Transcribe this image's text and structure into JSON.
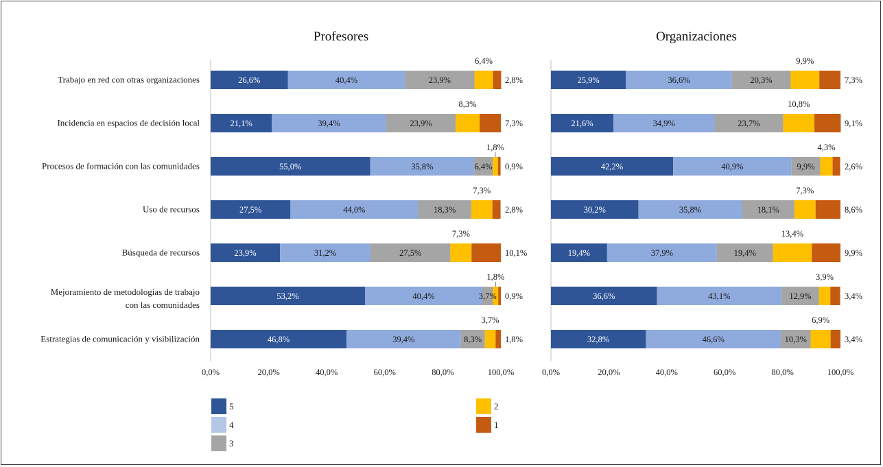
{
  "chart_data": {
    "type": "bar",
    "stacked": true,
    "orientation": "horizontal",
    "categories": [
      "Trabajo en red con otras organizaciones",
      "Incidencia en espacios de decisión local",
      "Procesos de formación con las comunidades",
      "Uso de recursos",
      "Búsqueda de recursos",
      "Mejoramiento de metodologías de trabajo con las comunidades",
      "Estrategias de comunicación y visibilización"
    ],
    "category_lines": [
      [
        "Trabajo en red con otras organizaciones"
      ],
      [
        "Incidencia en espacios de decisión local"
      ],
      [
        "Procesos de formación con las comunidades"
      ],
      [
        "Uso de recursos"
      ],
      [
        "Búsqueda de recursos"
      ],
      [
        "Mejoramiento de metodologías de trabajo",
        "con las comunidades"
      ],
      [
        "Estrategias de comunicación y visibilización"
      ]
    ],
    "x_ticks": [
      "0,0%",
      "20,0%",
      "40,0%",
      "60,0%",
      "80,0%",
      "100,0%"
    ],
    "xlim": [
      0,
      100
    ],
    "series_names": [
      "5",
      "4",
      "3",
      "2",
      "1"
    ],
    "colors": [
      "#2F5597",
      "#8FAADC",
      "#A5A5A5",
      "#FFC000",
      "#C55A11"
    ],
    "legend_placement": "bottom",
    "legend_swatch_colors": [
      "#2F5597",
      "#B4C7E7",
      "#A5A5A5",
      "#FFC000",
      "#C55A11"
    ],
    "panels": [
      {
        "title": "Profesores",
        "values": [
          [
            26.6,
            40.4,
            23.9,
            6.4,
            2.8
          ],
          [
            21.1,
            39.4,
            23.9,
            8.3,
            7.3
          ],
          [
            55.0,
            35.8,
            6.4,
            1.8,
            0.9
          ],
          [
            27.5,
            44.0,
            18.3,
            7.3,
            2.8
          ],
          [
            23.9,
            31.2,
            27.5,
            7.3,
            10.1
          ],
          [
            53.2,
            40.4,
            3.7,
            1.8,
            0.9
          ],
          [
            46.8,
            39.4,
            8.3,
            3.7,
            1.8
          ]
        ],
        "labels": [
          [
            "26,6%",
            "40,4%",
            "23,9%",
            "6,4%",
            "2,8%"
          ],
          [
            "21,1%",
            "39,4%",
            "23,9%",
            "8,3%",
            "7,3%"
          ],
          [
            "55,0%",
            "35,8%",
            "6,4%",
            "1,8%",
            "0,9%"
          ],
          [
            "27,5%",
            "44,0%",
            "18,3%",
            "7,3%",
            "2,8%"
          ],
          [
            "23,9%",
            "31,2%",
            "27,5%",
            "7,3%",
            "10,1%"
          ],
          [
            "53,2%",
            "40,4%",
            "3,7%",
            "1,8%",
            "0,9%"
          ],
          [
            "46,8%",
            "39,4%",
            "8,3%",
            "3,7%",
            "1,8%"
          ]
        ]
      },
      {
        "title": "Organizaciones",
        "values": [
          [
            25.9,
            36.6,
            20.3,
            9.9,
            7.3
          ],
          [
            21.6,
            34.9,
            23.7,
            10.8,
            9.1
          ],
          [
            42.2,
            40.9,
            9.9,
            4.3,
            2.6
          ],
          [
            30.2,
            35.8,
            18.1,
            7.3,
            8.6
          ],
          [
            19.4,
            37.9,
            19.4,
            13.4,
            9.9
          ],
          [
            36.6,
            43.1,
            12.9,
            3.9,
            3.4
          ],
          [
            32.8,
            46.6,
            10.3,
            6.9,
            3.4
          ]
        ],
        "labels": [
          [
            "25,9%",
            "36,6%",
            "20,3%",
            "9,9%",
            "7,3%"
          ],
          [
            "21,6%",
            "34,9%",
            "23,7%",
            "10,8%",
            "9,1%"
          ],
          [
            "42,2%",
            "40,9%",
            "9,9%",
            "4,3%",
            "2,6%"
          ],
          [
            "30,2%",
            "35,8%",
            "18,1%",
            "7,3%",
            "8,6%"
          ],
          [
            "19,4%",
            "37,9%",
            "19,4%",
            "13,4%",
            "9,9%"
          ],
          [
            "36,6%",
            "43,1%",
            "12,9%",
            "3,9%",
            "3,4%"
          ],
          [
            "32,8%",
            "46,6%",
            "10,3%",
            "6,9%",
            "3,4%"
          ]
        ]
      }
    ]
  }
}
